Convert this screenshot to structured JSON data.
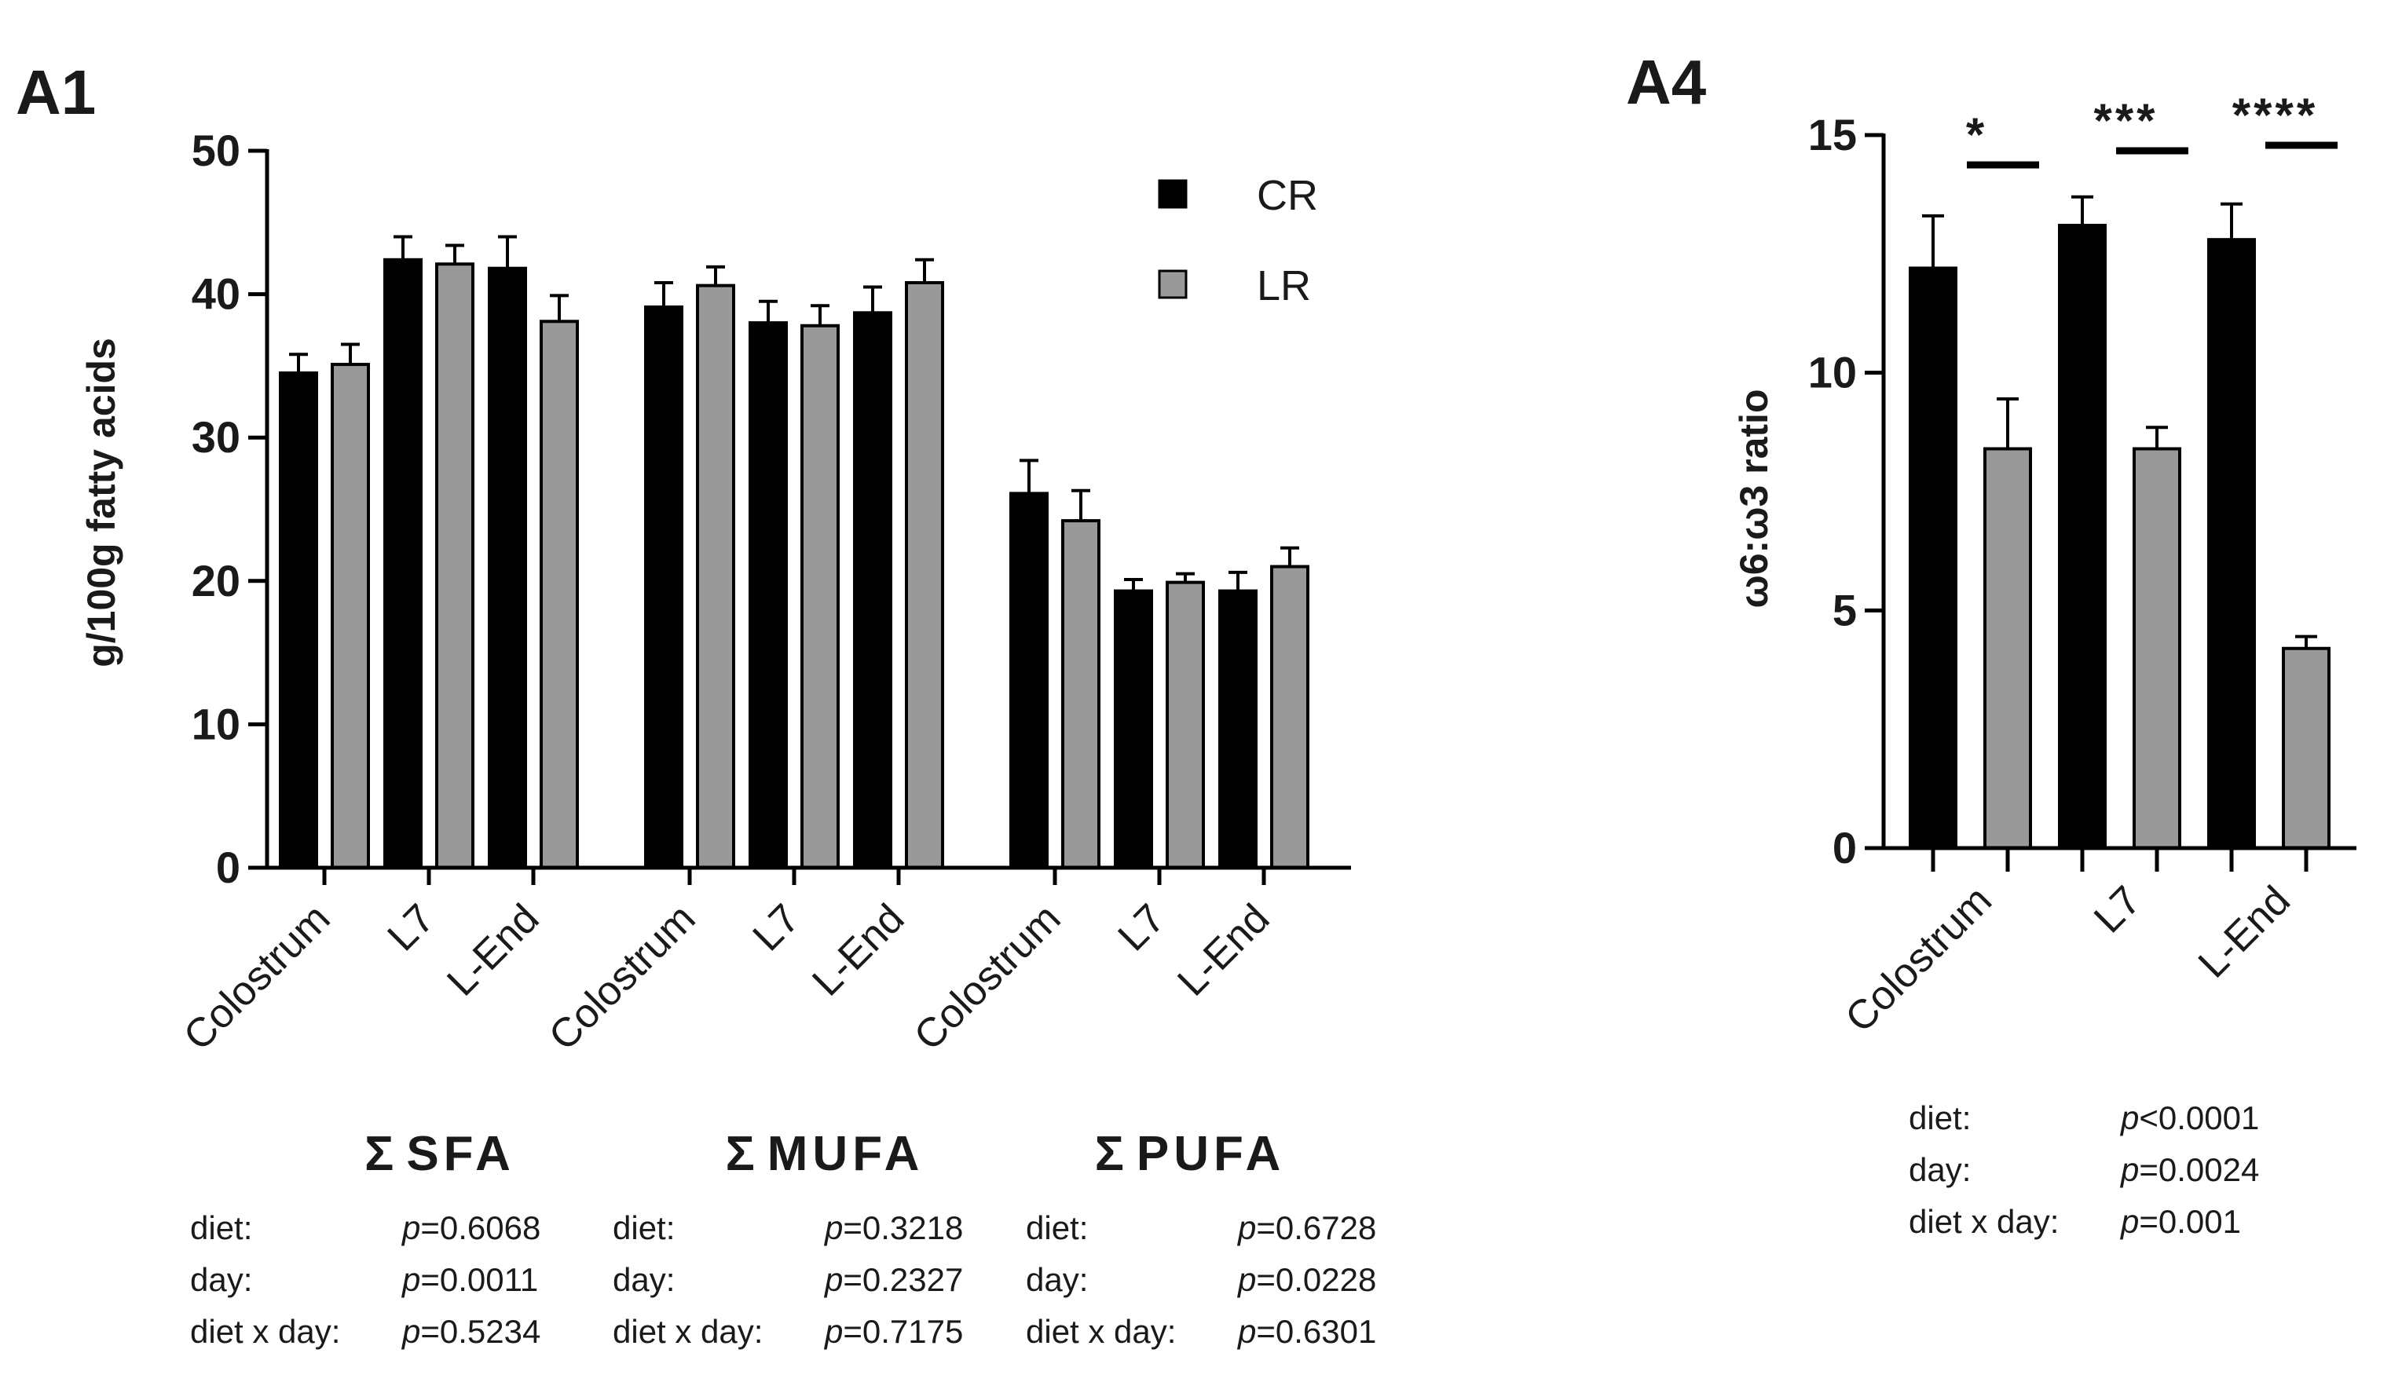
{
  "panels": [
    {
      "label": "A1",
      "ylabel": "g/100g fatty acids",
      "yticks": [
        "0",
        "10",
        "20",
        "30",
        "40",
        "50"
      ],
      "legend": [
        {
          "label": "CR",
          "color": "#000000"
        },
        {
          "label": "LR",
          "color": "#999999"
        }
      ],
      "groups": [
        {
          "title": "SFA",
          "sigma": "Σ"
        },
        {
          "title": "MUFA",
          "sigma": "Σ"
        },
        {
          "title": "PUFA",
          "sigma": "Σ"
        }
      ],
      "stats": [
        [
          {
            "label": "diet:",
            "p_symbol": "p",
            "p_value": "=0.6068"
          },
          {
            "label": "day:",
            "p_symbol": "p",
            "p_value": "=0.0011"
          },
          {
            "label": "diet x day:",
            "p_symbol": "p",
            "p_value": "=0.5234"
          }
        ],
        [
          {
            "label": "diet:",
            "p_symbol": "p",
            "p_value": "=0.3218"
          },
          {
            "label": "day:",
            "p_symbol": "p",
            "p_value": "=0.2327"
          },
          {
            "label": "diet x day:",
            "p_symbol": "p",
            "p_value": "=0.7175"
          }
        ],
        [
          {
            "label": "diet:",
            "p_symbol": "p",
            "p_value": "=0.6728"
          },
          {
            "label": "day:",
            "p_symbol": "p",
            "p_value": "=0.0228"
          },
          {
            "label": "diet x day:",
            "p_symbol": "p",
            "p_value": "=0.6301"
          }
        ]
      ]
    },
    {
      "label": "A4",
      "ylabel": "ω6:ω3 ratio",
      "yticks": [
        "0",
        "5",
        "10",
        "15"
      ],
      "significance": [
        "*",
        "***",
        "****"
      ],
      "stats": [
        {
          "label": "diet:",
          "p_symbol": "p",
          "p_value": "<0.0001"
        },
        {
          "label": "day:",
          "p_symbol": "p",
          "p_value": "=0.0024"
        },
        {
          "label": "diet x day:",
          "p_symbol": "p",
          "p_value": "=0.001"
        }
      ]
    }
  ],
  "colors": {
    "CR": "#000000",
    "LR": "#999999"
  },
  "chart_data": [
    {
      "panel": "A1",
      "type": "bar",
      "ylabel": "g/100g fatty acids",
      "ylim": [
        0,
        50
      ],
      "grid": false,
      "legend_position": "top-right",
      "groups": [
        "Σ SFA",
        "Σ MUFA",
        "Σ PUFA"
      ],
      "categories": [
        "Colostrum",
        "L7",
        "L-End",
        "Colostrum",
        "L7",
        "L-End",
        "Colostrum",
        "L7",
        "L-End"
      ],
      "series": [
        {
          "name": "CR",
          "values": [
            34.5,
            42.4,
            41.8,
            39.1,
            38.0,
            38.7,
            26.1,
            19.3,
            19.3
          ],
          "errors": [
            1.3,
            1.6,
            2.2,
            1.7,
            1.5,
            1.8,
            2.3,
            0.8,
            1.3
          ]
        },
        {
          "name": "LR",
          "values": [
            35.1,
            42.1,
            38.1,
            40.6,
            37.8,
            40.8,
            24.2,
            19.9,
            21.0
          ],
          "errors": [
            1.4,
            1.3,
            1.8,
            1.3,
            1.4,
            1.6,
            2.1,
            0.6,
            1.3
          ]
        }
      ]
    },
    {
      "panel": "A4",
      "type": "bar",
      "ylabel": "ω6:ω3 ratio",
      "ylim": [
        0,
        15
      ],
      "grid": false,
      "categories": [
        "Colostrum",
        "L7",
        "L-End"
      ],
      "series": [
        {
          "name": "CR",
          "values": [
            12.2,
            13.1,
            12.8
          ],
          "errors": [
            1.1,
            0.6,
            0.75
          ]
        },
        {
          "name": "LR",
          "values": [
            8.4,
            8.4,
            4.2
          ],
          "errors": [
            1.05,
            0.45,
            0.25
          ]
        }
      ],
      "significance": [
        "*",
        "***",
        "****"
      ]
    }
  ]
}
